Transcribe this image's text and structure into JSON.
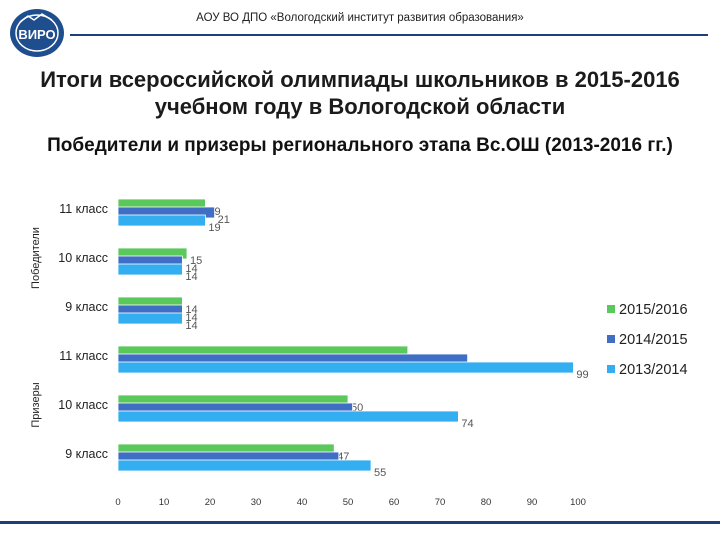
{
  "header": {
    "org": "АОУ ВО ДПО «Вологодский институт развития образования»",
    "logo_text": "ВИРО"
  },
  "title": "Итоги всероссийской олимпиады школьников в 2015-2016 учебном году в Вологодской области",
  "subtitle": "Победители и призеры регионального этапа Вс.ОШ (2013-2016 гг.)",
  "chart_data": {
    "type": "bar",
    "orientation": "horizontal",
    "title": "Победители и призеры регионального этапа Вс.ОШ (2013-2016 гг.)",
    "groups": [
      {
        "label": "Победители",
        "categories": [
          "11 класс",
          "10 класс",
          "9 класс"
        ]
      },
      {
        "label": "Призеры",
        "categories": [
          "11 класс",
          "10 класс",
          "9 класс"
        ]
      }
    ],
    "categories": [
      "Победители 11 класс",
      "Победители 10 класс",
      "Победители 9 класс",
      "Призеры 11 класс",
      "Призеры 10 класс",
      "Призеры 9 класс"
    ],
    "series": [
      {
        "name": "2015/2016",
        "color": "#5ac85a",
        "values": [
          19,
          15,
          14,
          63,
          50,
          47
        ]
      },
      {
        "name": "2014/2015",
        "color": "#3f6fc4",
        "values": [
          21,
          14,
          14,
          76,
          51,
          48
        ]
      },
      {
        "name": "2013/2014",
        "color": "#33aef0",
        "values": [
          19,
          14,
          14,
          99,
          74,
          55
        ]
      }
    ],
    "x_ticks": [
      "0",
      "10",
      "20",
      "30",
      "40",
      "50",
      "60",
      "70",
      "80",
      "90",
      "100"
    ],
    "xlim": [
      0,
      100
    ],
    "legend_position": "right",
    "grid": false
  }
}
